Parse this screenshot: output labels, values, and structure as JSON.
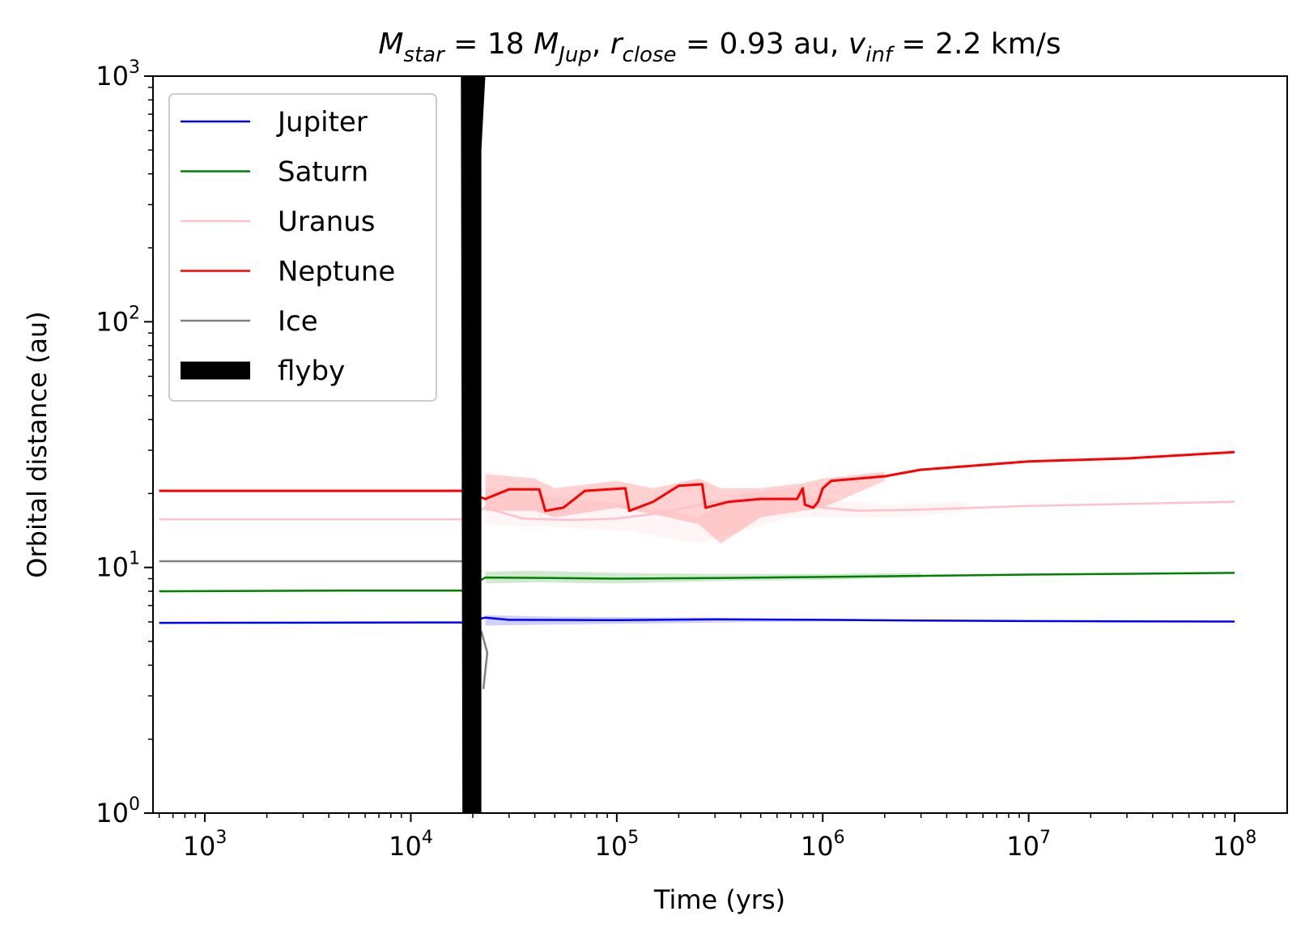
{
  "chart_data": {
    "type": "line",
    "title": {
      "parts": [
        {
          "t": "M",
          "style": "italic"
        },
        {
          "t": "star",
          "style": "italic-sub"
        },
        {
          "t": " = 18 ",
          "style": "normal"
        },
        {
          "t": "M",
          "style": "italic"
        },
        {
          "t": "Jup",
          "style": "italic-sub"
        },
        {
          "t": ", ",
          "style": "normal"
        },
        {
          "t": "r",
          "style": "italic"
        },
        {
          "t": "close",
          "style": "italic-sub"
        },
        {
          "t": " = 0.93 au, ",
          "style": "normal"
        },
        {
          "t": "v",
          "style": "italic"
        },
        {
          "t": "inf",
          "style": "italic-sub"
        },
        {
          "t": " = 2.2 km/s",
          "style": "normal"
        }
      ]
    },
    "xlabel": "Time (yrs)",
    "ylabel": "Orbital distance (au)",
    "xscale": "log",
    "yscale": "log",
    "xlim": [
      560,
      180000000
    ],
    "ylim": [
      1,
      1000
    ],
    "x_ticks": [
      {
        "value": 1000,
        "base": "10",
        "exp": "3"
      },
      {
        "value": 10000,
        "base": "10",
        "exp": "4"
      },
      {
        "value": 100000,
        "base": "10",
        "exp": "5"
      },
      {
        "value": 1000000,
        "base": "10",
        "exp": "6"
      },
      {
        "value": 10000000,
        "base": "10",
        "exp": "7"
      },
      {
        "value": 100000000,
        "base": "10",
        "exp": "8"
      }
    ],
    "y_ticks": [
      {
        "value": 1,
        "base": "10",
        "exp": "0"
      },
      {
        "value": 10,
        "base": "10",
        "exp": "1"
      },
      {
        "value": 100,
        "base": "10",
        "exp": "2"
      },
      {
        "value": 1000,
        "base": "10",
        "exp": "3"
      }
    ],
    "legend_position": "top-left",
    "series": [
      {
        "name": "Jupiter",
        "color": "#0000ff",
        "points": [
          [
            600,
            5.95
          ],
          [
            18000,
            5.97
          ],
          [
            23000,
            6.25
          ],
          [
            30000,
            6.12
          ],
          [
            100000,
            6.1
          ],
          [
            300000,
            6.15
          ],
          [
            1000000,
            6.12
          ],
          [
            3000000,
            6.08
          ],
          [
            10000000,
            6.05
          ],
          [
            100000000,
            6.02
          ]
        ],
        "band": [
          [
            23000,
            6.4,
            5.8
          ],
          [
            50000,
            6.3,
            5.85
          ],
          [
            100000,
            6.28,
            5.9
          ],
          [
            250000,
            6.25,
            5.95
          ],
          [
            500000,
            6.2,
            6.0
          ],
          [
            1500000,
            6.18,
            6.05
          ]
        ]
      },
      {
        "name": "Saturn",
        "color": "#008000",
        "points": [
          [
            600,
            8.0
          ],
          [
            5000,
            8.05
          ],
          [
            18000,
            8.05
          ],
          [
            23000,
            9.1
          ],
          [
            50000,
            9.05
          ],
          [
            100000,
            9.0
          ],
          [
            300000,
            9.05
          ],
          [
            1000000,
            9.15
          ],
          [
            10000000,
            9.35
          ],
          [
            100000000,
            9.5
          ]
        ],
        "band": [
          [
            23000,
            9.6,
            8.6
          ],
          [
            40000,
            9.7,
            8.7
          ],
          [
            100000,
            9.5,
            8.6
          ],
          [
            300000,
            9.4,
            8.8
          ],
          [
            1000000,
            9.4,
            8.9
          ],
          [
            3000000,
            9.5,
            9.1
          ]
        ]
      },
      {
        "name": "Uranus",
        "color": "#ffc0cb",
        "points": [
          [
            600,
            15.7
          ],
          [
            18000,
            15.7
          ],
          [
            23000,
            17.5
          ],
          [
            35000,
            15.8
          ],
          [
            60000,
            15.6
          ],
          [
            100000,
            15.8
          ],
          [
            150000,
            16.5
          ],
          [
            300000,
            18.5
          ],
          [
            700000,
            19.0
          ],
          [
            1000000,
            17.5
          ],
          [
            1500000,
            17.0
          ],
          [
            3000000,
            17.2
          ],
          [
            10000000,
            17.8
          ],
          [
            100000000,
            18.5
          ]
        ],
        "band": [
          [
            23000,
            21,
            15
          ],
          [
            60000,
            19,
            14.5
          ],
          [
            120000,
            18,
            14
          ],
          [
            250000,
            16,
            12.5
          ],
          [
            400000,
            20,
            14
          ],
          [
            700000,
            21,
            16
          ],
          [
            1000000,
            19,
            16
          ],
          [
            2000000,
            18,
            16
          ],
          [
            5000000,
            18.5,
            16.8
          ]
        ]
      },
      {
        "name": "Neptune",
        "color": "#ff0000",
        "points": [
          [
            600,
            20.5
          ],
          [
            18000,
            20.5
          ],
          [
            23000,
            19.0
          ],
          [
            30000,
            20.8
          ],
          [
            42000,
            20.8
          ],
          [
            45000,
            17.0
          ],
          [
            55000,
            17.5
          ],
          [
            70000,
            20.5
          ],
          [
            110000,
            21.0
          ],
          [
            115000,
            17.0
          ],
          [
            150000,
            18.5
          ],
          [
            200000,
            21.5
          ],
          [
            260000,
            21.8
          ],
          [
            270000,
            17.5
          ],
          [
            350000,
            18.5
          ],
          [
            500000,
            19.0
          ],
          [
            750000,
            19.0
          ],
          [
            800000,
            21.0
          ],
          [
            820000,
            18.0
          ],
          [
            900000,
            17.5
          ],
          [
            950000,
            18.5
          ],
          [
            1000000,
            21.0
          ],
          [
            1100000,
            22.5
          ],
          [
            2000000,
            23.5
          ],
          [
            3000000,
            25.0
          ],
          [
            10000000,
            27.0
          ],
          [
            30000000,
            27.8
          ],
          [
            100000000,
            29.5
          ]
        ],
        "band": [
          [
            23000,
            24,
            17
          ],
          [
            40000,
            23,
            17
          ],
          [
            50000,
            21,
            16
          ],
          [
            100000,
            22.5,
            17.5
          ],
          [
            150000,
            21,
            16.5
          ],
          [
            250000,
            23,
            15
          ],
          [
            320000,
            21,
            12.5
          ],
          [
            500000,
            21,
            16
          ],
          [
            800000,
            22,
            17
          ],
          [
            1000000,
            23,
            17.5
          ],
          [
            2000000,
            24.5,
            22.5
          ]
        ]
      },
      {
        "name": "Ice",
        "color": "#808080",
        "points": [
          [
            600,
            10.6
          ],
          [
            18000,
            10.6
          ]
        ],
        "extra_points": [
          [
            22000,
            5.5
          ],
          [
            23500,
            4.5
          ],
          [
            22500,
            3.2
          ]
        ]
      }
    ],
    "flyby": {
      "name": "flyby",
      "color": "#000000",
      "polygon": [
        [
          17500,
          1000
        ],
        [
          21500,
          1000
        ],
        [
          23000,
          1000
        ],
        [
          22000,
          500
        ],
        [
          22000,
          1
        ],
        [
          17800,
          1
        ]
      ]
    }
  }
}
